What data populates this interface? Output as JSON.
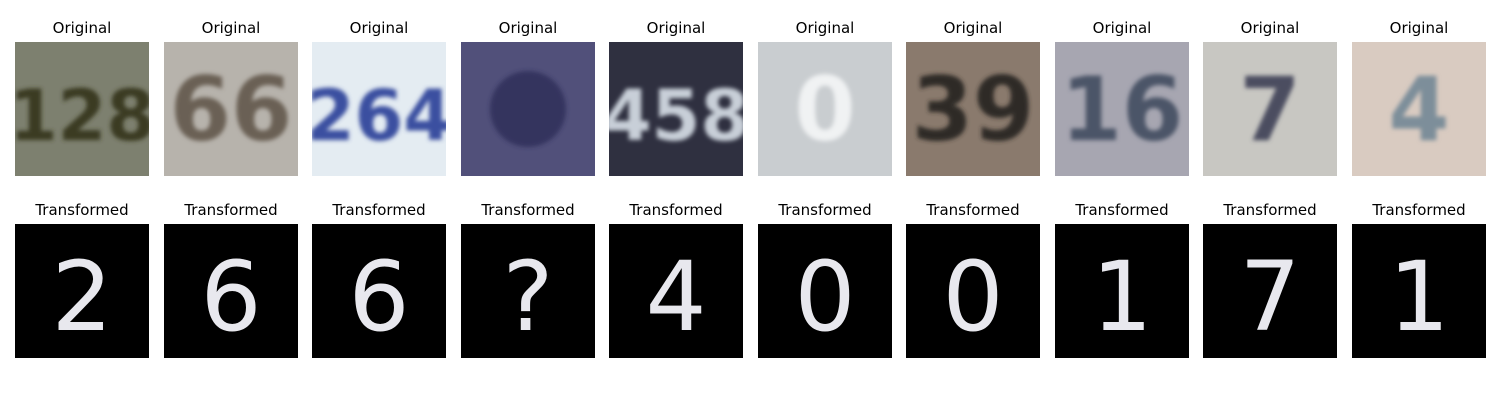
{
  "panels": {
    "original_title": "Original",
    "transformed_title": "Transformed"
  },
  "originals": [
    {
      "digits": "128",
      "bg": "#7d806f",
      "ink": "#3a3a22"
    },
    {
      "digits": "66",
      "bg": "#b7b3ac",
      "ink": "#6b6154"
    },
    {
      "digits": "264",
      "bg": "#e4ecf2",
      "ink": "#3b4fa0"
    },
    {
      "digits": "",
      "bg": "#51507a",
      "ink": "#20244d"
    },
    {
      "digits": "458",
      "bg": "#2f3040",
      "ink": "#c8cfd8"
    },
    {
      "digits": "0",
      "bg": "#c9cdd0",
      "ink": "#f0f2f3"
    },
    {
      "digits": "39",
      "bg": "#8a7a6d",
      "ink": "#2d2a26"
    },
    {
      "digits": "16",
      "bg": "#a7a6b1",
      "ink": "#4c5468"
    },
    {
      "digits": "7",
      "bg": "#c8c7c2",
      "ink": "#4b4e60"
    },
    {
      "digits": "4",
      "bg": "#d9cbc1",
      "ink": "#7d8e9a"
    }
  ],
  "transformed": [
    "2",
    "6",
    "6",
    "?",
    "4",
    "0",
    "0",
    "1",
    "7",
    "1"
  ]
}
